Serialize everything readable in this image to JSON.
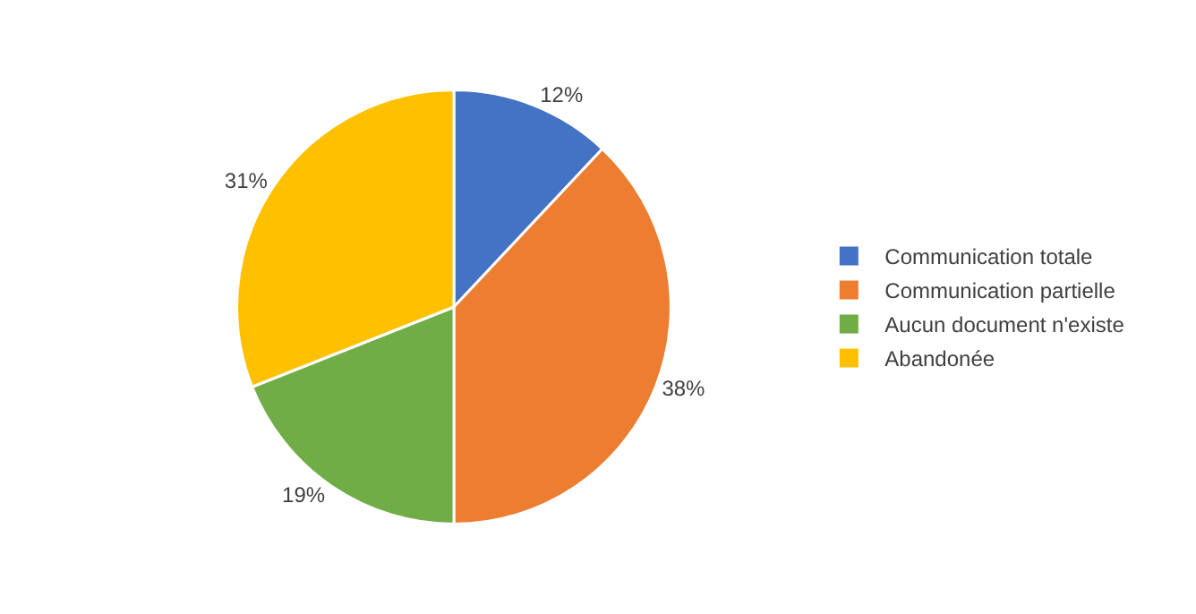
{
  "chart_data": {
    "type": "pie",
    "categories": [
      "Communication totale",
      "Communication partielle",
      "Aucun document n'existe",
      "Abandonée"
    ],
    "values": [
      12,
      38,
      19,
      31
    ],
    "colors": [
      "#4472c4",
      "#ed7d31",
      "#70ad47",
      "#ffc000"
    ],
    "value_labels": [
      "12%",
      "38%",
      "19%",
      "31%"
    ],
    "legend": "right"
  }
}
